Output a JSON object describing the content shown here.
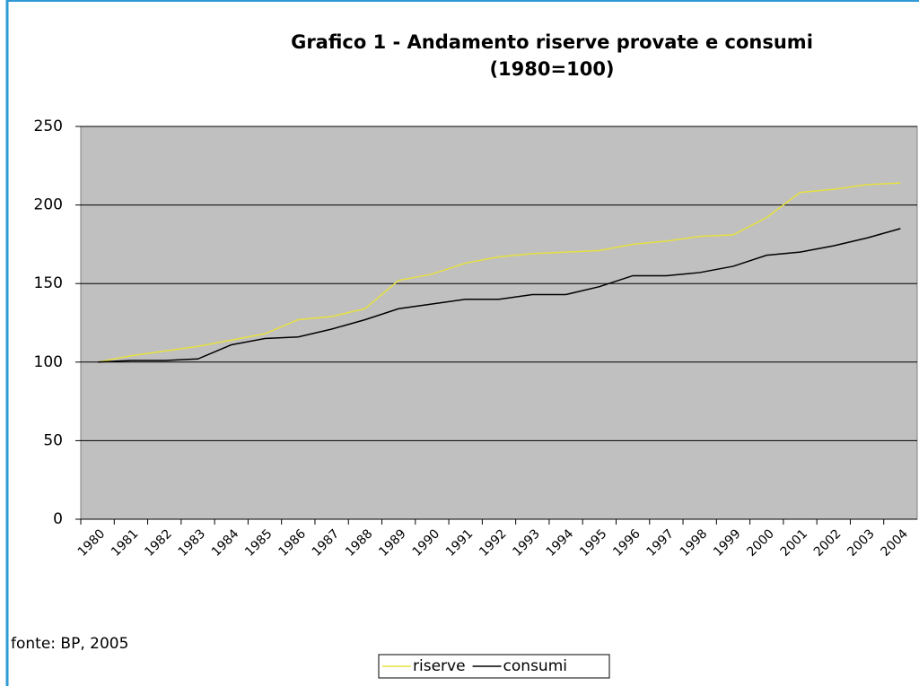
{
  "chart_data": {
    "type": "line",
    "title": "Grafico 1 - Andamento riserve provate e consumi",
    "subtitle": "(1980=100)",
    "annotation": "fonte: BP, 2005",
    "categories": [
      "1980",
      "1981",
      "1982",
      "1983",
      "1984",
      "1985",
      "1986",
      "1987",
      "1988",
      "1989",
      "1990",
      "1991",
      "1992",
      "1993",
      "1994",
      "1995",
      "1996",
      "1997",
      "1998",
      "1999",
      "2000",
      "2001",
      "2002",
      "2003",
      "2004"
    ],
    "series": [
      {
        "name": "riserve",
        "color": "#e6e040",
        "values": [
          100,
          104,
          107,
          110,
          114,
          118,
          127,
          129,
          134,
          152,
          156,
          163,
          167,
          169,
          170,
          171,
          175,
          177,
          180,
          181,
          192,
          208,
          210,
          213,
          214
        ]
      },
      {
        "name": "consumi",
        "color": "#000000",
        "values": [
          100,
          101,
          101,
          102,
          111,
          115,
          116,
          121,
          127,
          134,
          137,
          140,
          140,
          143,
          143,
          148,
          155,
          155,
          157,
          161,
          168,
          170,
          174,
          179,
          185
        ]
      }
    ],
    "ylim": [
      0,
      250
    ],
    "yticks": [
      0,
      50,
      100,
      150,
      200,
      250
    ],
    "grid": true,
    "legend": "bottom"
  }
}
